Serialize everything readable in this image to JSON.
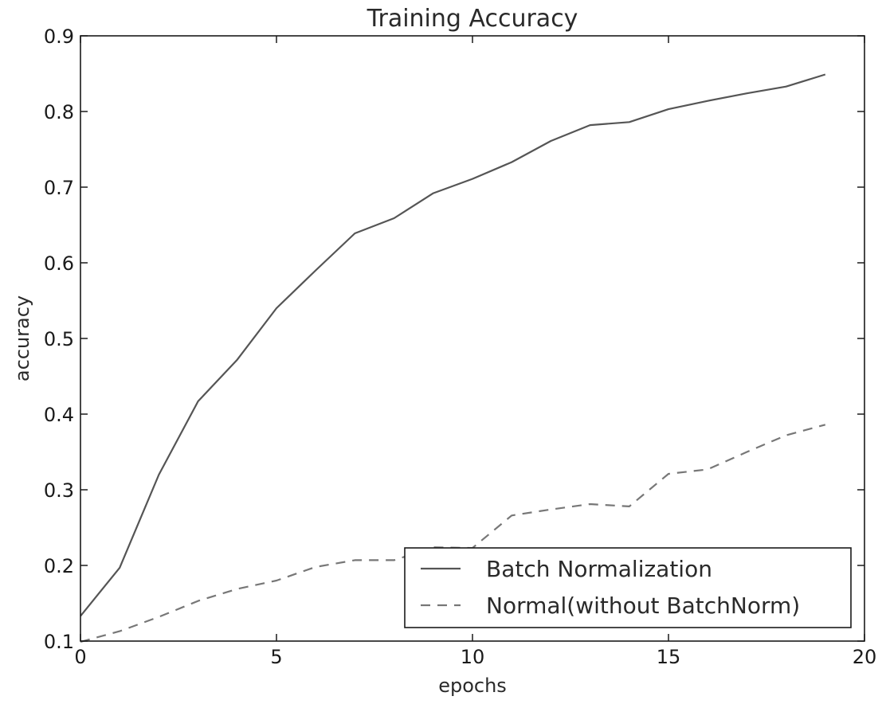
{
  "chart_data": {
    "type": "line",
    "title": "Training Accuracy",
    "xlabel": "epochs",
    "ylabel": "accuracy",
    "xlim": [
      0,
      20
    ],
    "ylim": [
      0.1,
      0.9
    ],
    "xticks": [
      "0",
      "5",
      "10",
      "15",
      "20"
    ],
    "yticks": [
      "0.1",
      "0.2",
      "0.3",
      "0.4",
      "0.5",
      "0.6",
      "0.7",
      "0.8",
      "0.9"
    ],
    "grid": false,
    "legend_position": "bottom-right",
    "series": [
      {
        "name": "Batch Normalization",
        "style": "solid",
        "color": "#555555",
        "x": [
          0,
          1,
          2,
          3,
          4,
          5,
          6,
          7,
          8,
          9,
          10,
          11,
          12,
          13,
          14,
          15,
          16,
          17,
          18,
          19
        ],
        "values": [
          0.133,
          0.197,
          0.32,
          0.417,
          0.472,
          0.54,
          0.59,
          0.639,
          0.659,
          0.692,
          0.711,
          0.733,
          0.761,
          0.782,
          0.786,
          0.803,
          0.814,
          0.824,
          0.833,
          0.849
        ]
      },
      {
        "name": "Normal(without BatchNorm)",
        "style": "dashed",
        "color": "#777777",
        "x": [
          0,
          1,
          2,
          3,
          4,
          5,
          6,
          7,
          8,
          9,
          10,
          11,
          12,
          13,
          14,
          15,
          16,
          17,
          18,
          19
        ],
        "values": [
          0.099,
          0.113,
          0.132,
          0.153,
          0.169,
          0.18,
          0.198,
          0.207,
          0.207,
          0.224,
          0.223,
          0.266,
          0.274,
          0.281,
          0.278,
          0.321,
          0.327,
          0.35,
          0.372,
          0.386
        ]
      }
    ]
  }
}
